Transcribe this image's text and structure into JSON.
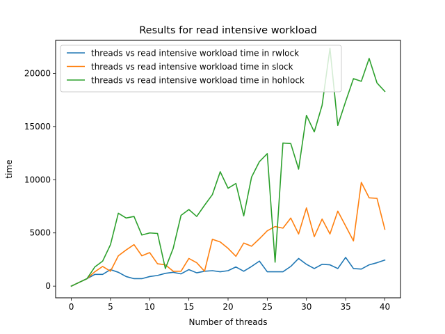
{
  "chart_data": {
    "type": "line",
    "title": "Results for read intensive workload",
    "xlabel": "Number of threads",
    "ylabel": "time",
    "xlim": [
      -2,
      42
    ],
    "ylim": [
      -1100,
      23100
    ],
    "xticks": [
      0,
      5,
      10,
      15,
      20,
      25,
      30,
      35,
      40
    ],
    "yticks": [
      0,
      5000,
      10000,
      15000,
      20000
    ],
    "legend_position": "top-left",
    "grid": false,
    "x": [
      0,
      1,
      2,
      3,
      4,
      5,
      6,
      7,
      8,
      9,
      10,
      11,
      12,
      13,
      14,
      15,
      16,
      17,
      18,
      19,
      20,
      21,
      22,
      23,
      24,
      25,
      26,
      27,
      28,
      29,
      30,
      31,
      32,
      33,
      34,
      35,
      36,
      37,
      38,
      39,
      40
    ],
    "series": [
      {
        "name": "threads vs read intensive workload time in rwlock",
        "color": "#1f77b4",
        "values": [
          0,
          350,
          700,
          1100,
          1100,
          1550,
          1300,
          900,
          700,
          700,
          900,
          1000,
          1200,
          1300,
          1150,
          1550,
          1250,
          1400,
          1450,
          1350,
          1450,
          1800,
          1400,
          1850,
          2350,
          1350,
          1350,
          1350,
          1850,
          2600,
          2050,
          1650,
          2050,
          2000,
          1650,
          2700,
          1650,
          1600,
          2000,
          2200,
          2450
        ]
      },
      {
        "name": "threads vs read intensive workload time in slock",
        "color": "#ff7f0e",
        "values": [
          0,
          350,
          700,
          1350,
          1850,
          1400,
          2850,
          3400,
          3900,
          2850,
          3150,
          2100,
          2000,
          1400,
          1400,
          2600,
          2200,
          1400,
          4400,
          4150,
          3550,
          2800,
          4050,
          3750,
          4450,
          5200,
          5600,
          5450,
          6400,
          4900,
          7350,
          4650,
          6300,
          4900,
          7050,
          5650,
          4250,
          9750,
          8300,
          8250,
          5350
        ]
      },
      {
        "name": "threads vs read intensive workload time in hohlock",
        "color": "#2ca02c",
        "values": [
          0,
          350,
          700,
          1800,
          2350,
          3900,
          6850,
          6400,
          6550,
          4800,
          5000,
          4950,
          1650,
          3550,
          6650,
          7200,
          6550,
          7600,
          8600,
          10750,
          9200,
          9650,
          6600,
          10250,
          11700,
          12450,
          2250,
          13450,
          13400,
          11000,
          16050,
          14500,
          17000,
          22350,
          15100,
          17350,
          19500,
          19250,
          21400,
          19100,
          18300
        ]
      }
    ]
  }
}
